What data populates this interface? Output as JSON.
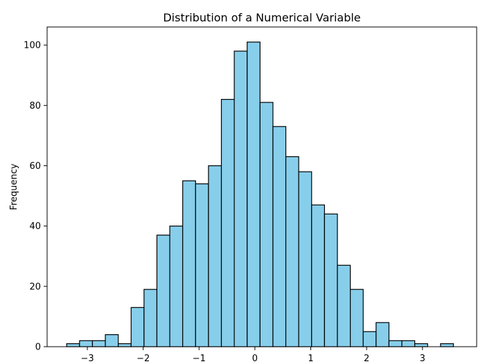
{
  "chart_data": {
    "type": "bar",
    "title": "Distribution of a Numerical Variable",
    "xlabel": "",
    "ylabel": "Frequency",
    "xlim": [
      -3.72,
      3.97
    ],
    "ylim": [
      0,
      106
    ],
    "grid": false,
    "x_ticks": [
      -3,
      -2,
      -1,
      0,
      1,
      2,
      3
    ],
    "x_tick_labels": [
      "−3",
      "−2",
      "−1",
      "0",
      "1",
      "2",
      "3"
    ],
    "y_ticks": [
      0,
      20,
      40,
      60,
      80,
      100
    ],
    "y_tick_labels": [
      "0",
      "20",
      "40",
      "60",
      "80",
      "100"
    ],
    "bin_start": -3.37,
    "bin_width": 0.2308,
    "values": [
      1,
      2,
      2,
      4,
      1,
      13,
      19,
      37,
      40,
      55,
      54,
      60,
      82,
      98,
      101,
      81,
      73,
      63,
      58,
      47,
      44,
      27,
      19,
      5,
      8,
      2,
      2,
      1,
      0,
      1
    ],
    "bar_color": "#87ceeb",
    "edge_color": "#000000"
  }
}
